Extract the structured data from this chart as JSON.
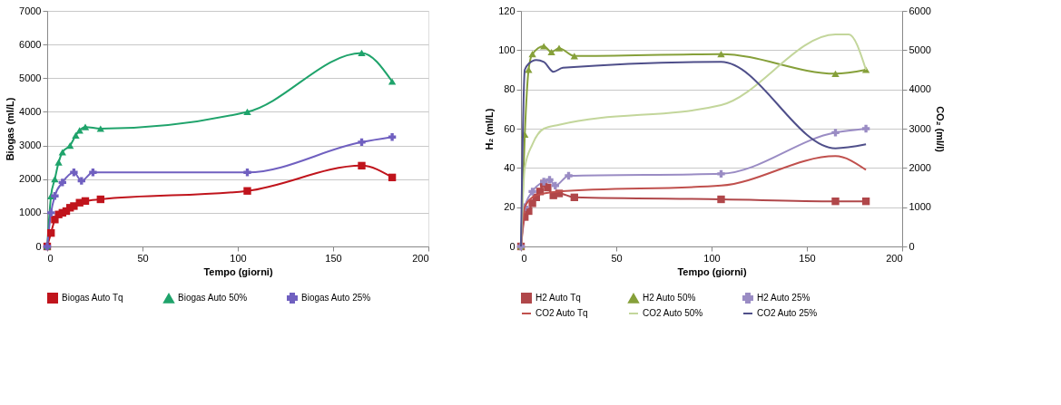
{
  "chart_data": [
    {
      "type": "line",
      "xlabel": "Tempo (giorni)",
      "ylabel": "Biogas (ml/L)",
      "xlim": [
        0,
        200
      ],
      "xticks": [
        0,
        50,
        100,
        150,
        200
      ],
      "ylim": [
        0,
        7000
      ],
      "yticks": [
        0,
        1000,
        2000,
        3000,
        4000,
        5000,
        6000,
        7000
      ],
      "grid": "y",
      "legend": "bottom",
      "series": [
        {
          "name": "Biogas Auto Tq",
          "color": "#c0141c",
          "marker": "square",
          "x": [
            0,
            2,
            4,
            6,
            8,
            10,
            12,
            14,
            17,
            20,
            28,
            105,
            165,
            181
          ],
          "values": [
            0,
            400,
            800,
            950,
            1000,
            1050,
            1150,
            1200,
            1300,
            1350,
            1400,
            1650,
            2400,
            2050
          ]
        },
        {
          "name": "Biogas Auto 50%",
          "color": "#1fa36b",
          "marker": "triangle",
          "x": [
            0,
            2,
            4,
            6,
            8,
            12,
            15,
            17,
            20,
            28,
            105,
            165,
            181
          ],
          "values": [
            0,
            1500,
            2000,
            2500,
            2800,
            3000,
            3300,
            3450,
            3550,
            3500,
            4000,
            5750,
            4900
          ]
        },
        {
          "name": "Biogas Auto 25%",
          "color": "#7060c0",
          "marker": "cross",
          "x": [
            0,
            2,
            4,
            8,
            14,
            18,
            24,
            105,
            165,
            181
          ],
          "values": [
            0,
            1000,
            1500,
            1900,
            2200,
            1950,
            2200,
            2200,
            3100,
            3250
          ]
        }
      ]
    },
    {
      "type": "line",
      "xlabel": "Tempo (giorni)",
      "ylabel": "H₂ (ml/L)",
      "y2label": "CO₂ (ml/l)",
      "xlim": [
        0,
        200
      ],
      "xticks": [
        0,
        50,
        100,
        150,
        200
      ],
      "ylim": [
        0,
        120
      ],
      "yticks": [
        0,
        20,
        40,
        60,
        80,
        100,
        120
      ],
      "y2lim": [
        0,
        6000
      ],
      "y2ticks": [
        0,
        1000,
        2000,
        3000,
        4000,
        5000,
        6000
      ],
      "grid": "y",
      "legend": "bottom",
      "series": [
        {
          "name": "H2 Auto Tq",
          "color": "#b0474a",
          "marker": "square",
          "x": [
            0,
            2,
            4,
            6,
            8,
            10,
            12,
            14,
            17,
            20,
            28,
            105,
            165,
            181
          ],
          "values": [
            0,
            15,
            18,
            22,
            25,
            28,
            32,
            30,
            26,
            27,
            25,
            24,
            23,
            23
          ]
        },
        {
          "name": "H2 Auto 50%",
          "color": "#86a03a",
          "marker": "triangle",
          "x": [
            0,
            2,
            4,
            6,
            12,
            16,
            20,
            28,
            105,
            165,
            181
          ],
          "values": [
            0,
            57,
            90,
            98,
            102,
            99,
            101,
            97,
            98,
            88,
            90
          ]
        },
        {
          "name": "H2 Auto 25%",
          "color": "#9a8cc4",
          "marker": "cross",
          "x": [
            0,
            2,
            6,
            12,
            15,
            18,
            25,
            105,
            165,
            181
          ],
          "values": [
            0,
            20,
            28,
            33,
            34,
            31,
            36,
            37,
            58,
            60
          ]
        },
        {
          "name": "CO2 Auto Tq",
          "color": "#c0504d",
          "marker": "none",
          "axis": "y2",
          "x": [
            0,
            2,
            6,
            12,
            20,
            105,
            165,
            181
          ],
          "values": [
            0,
            1000,
            1250,
            1350,
            1400,
            1550,
            2300,
            1950
          ]
        },
        {
          "name": "CO2 Auto 50%",
          "color": "#c3d69b",
          "marker": "none",
          "axis": "y2",
          "x": [
            0,
            2,
            6,
            12,
            20,
            105,
            165,
            172,
            181
          ],
          "values": [
            0,
            2000,
            2600,
            3000,
            3100,
            3600,
            5400,
            5400,
            4500
          ]
        },
        {
          "name": "CO2 Auto 25%",
          "color": "#4f4f8a",
          "marker": "none",
          "axis": "y2",
          "x": [
            0,
            2,
            4,
            8,
            12,
            17,
            22,
            105,
            165,
            181
          ],
          "values": [
            0,
            4500,
            4650,
            4750,
            4700,
            4450,
            4550,
            4700,
            2500,
            2600
          ]
        }
      ]
    }
  ]
}
